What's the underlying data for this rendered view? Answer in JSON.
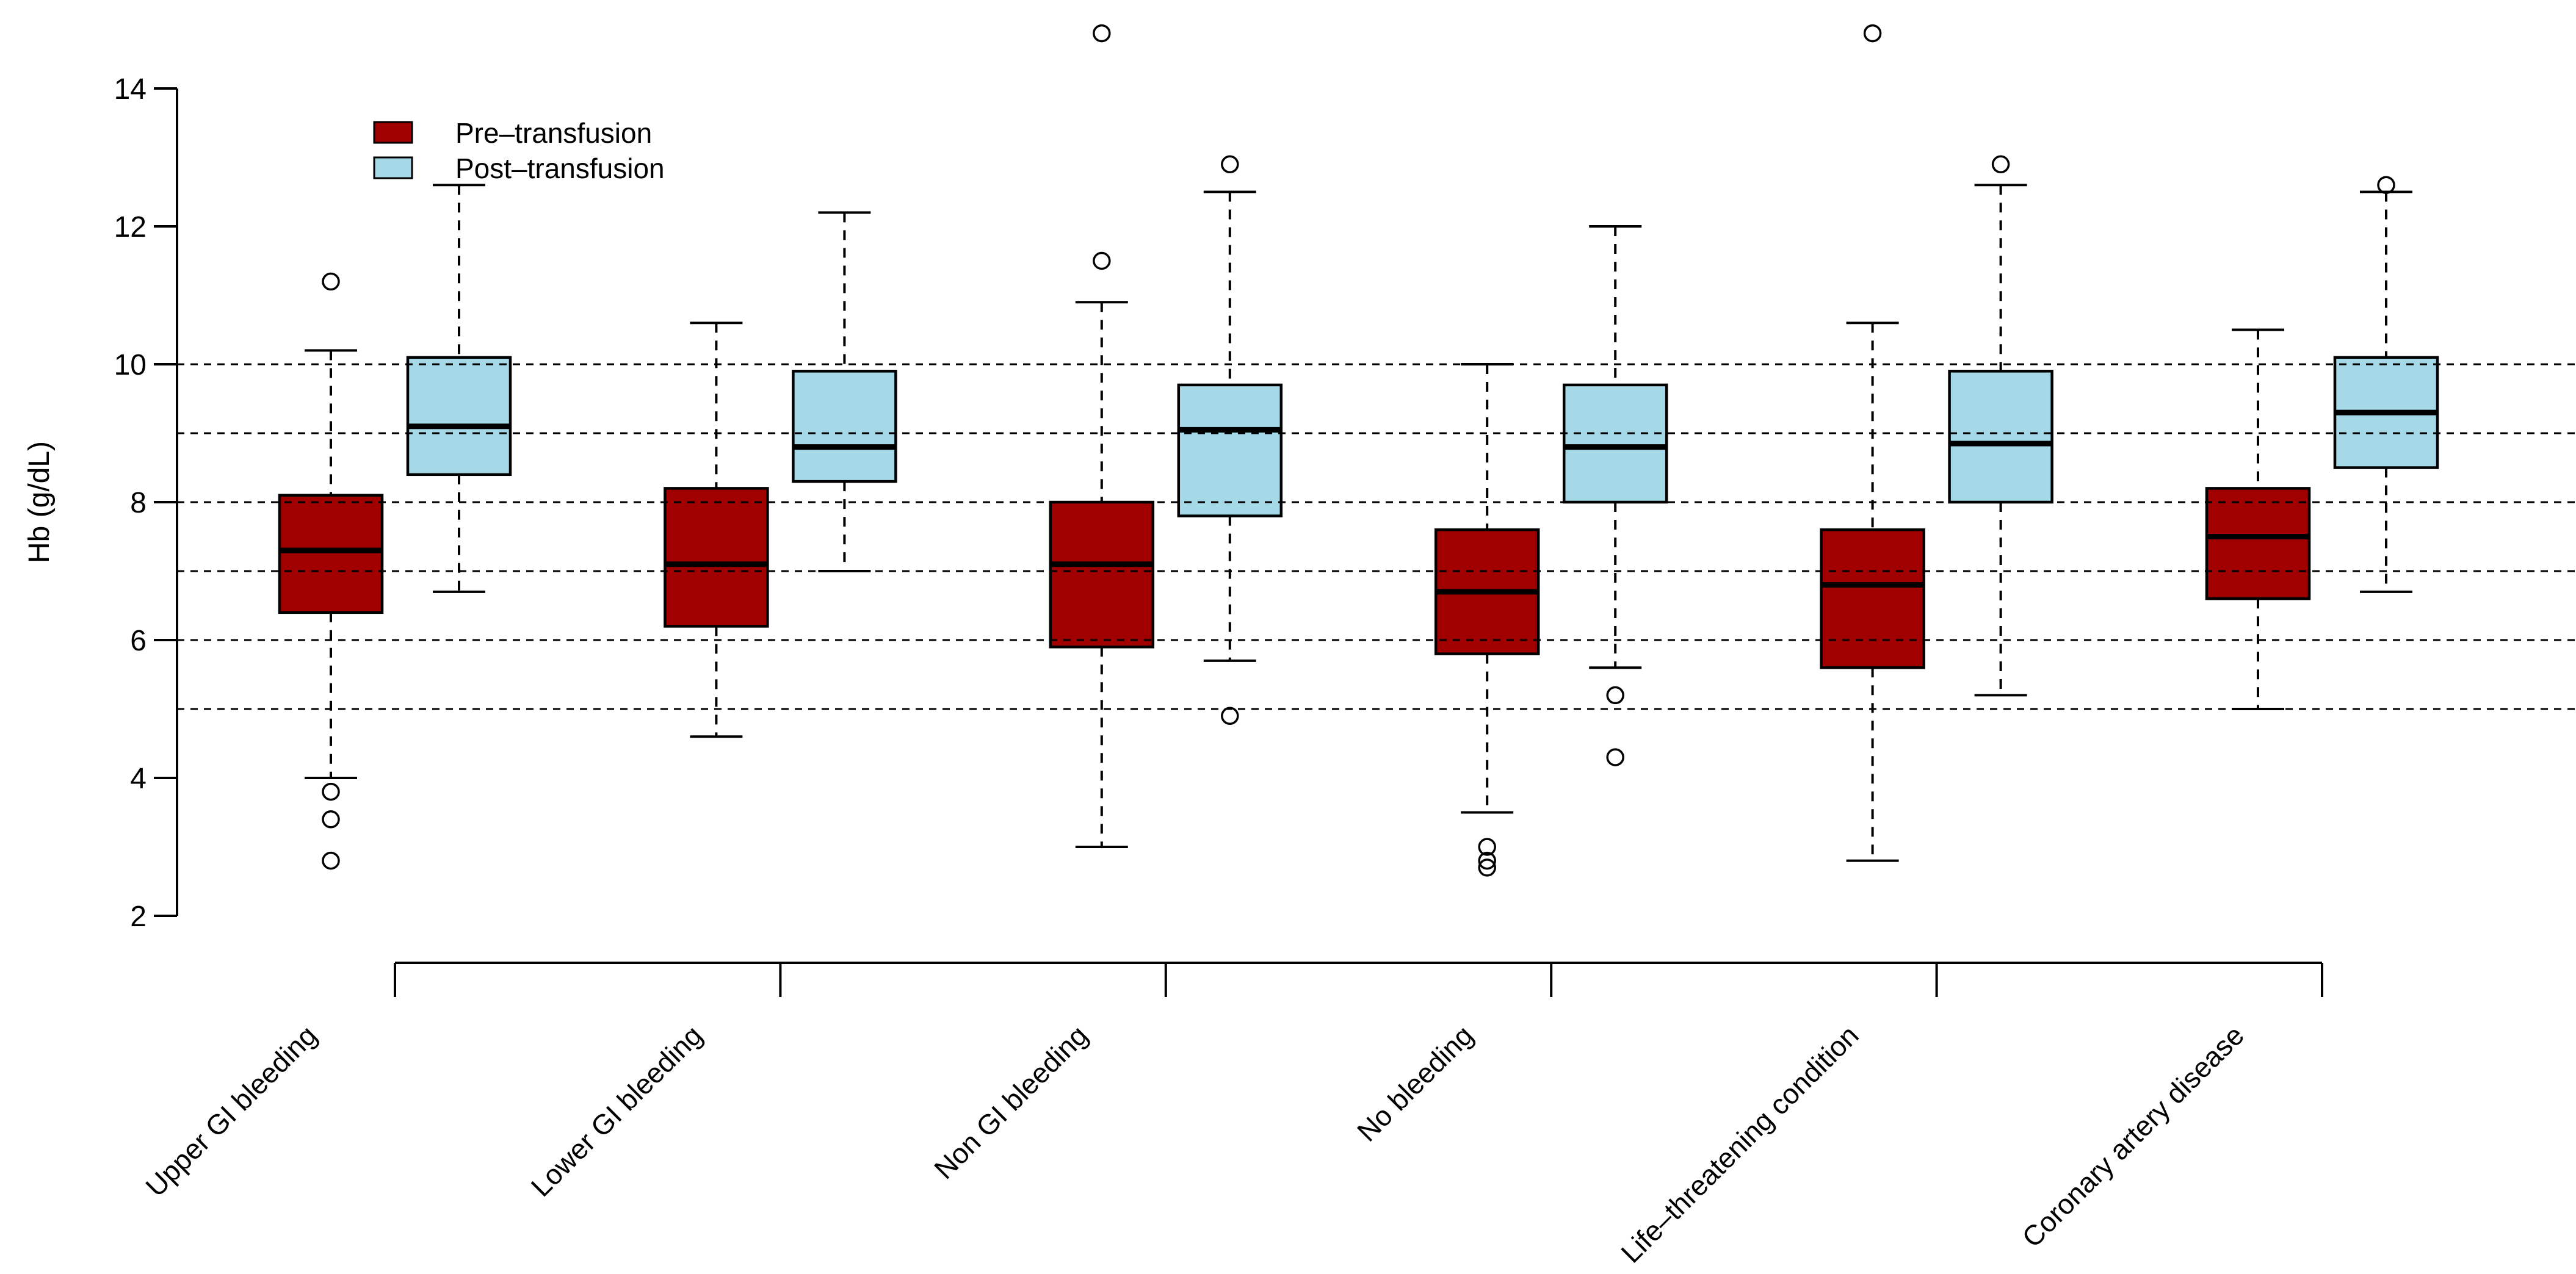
{
  "chart_data": {
    "type": "boxplot",
    "title": "",
    "xlabel": "",
    "ylabel": "Hb (g/dL)",
    "ylim": [
      2,
      14
    ],
    "yticks": [
      2,
      4,
      6,
      8,
      10,
      12,
      14
    ],
    "gridlines_y": [
      5,
      6,
      7,
      8,
      9,
      10
    ],
    "grid_style": "dotted-horizontal",
    "legend_position": "top-left-inside",
    "series": [
      {
        "name": "Pre–transfusion",
        "color": "#A00000"
      },
      {
        "name": "Post–transfusion",
        "color": "#A6D9E8"
      }
    ],
    "categories": [
      "Upper GI bleeding",
      "Lower GI bleeding",
      "Non GI bleeding",
      "No bleeding",
      "Life–threatening condition",
      "Coronary artery disease"
    ],
    "groups": [
      {
        "label": "Upper GI bleeding",
        "pre": {
          "whisker_low": 4.0,
          "q1": 6.4,
          "median": 7.3,
          "q3": 8.1,
          "whisker_high": 10.2,
          "outliers": [
            11.2,
            3.8,
            3.4,
            2.8
          ]
        },
        "post": {
          "whisker_low": 6.7,
          "q1": 8.4,
          "median": 9.1,
          "q3": 10.1,
          "whisker_high": 12.6,
          "outliers": []
        }
      },
      {
        "label": "Lower GI bleeding",
        "pre": {
          "whisker_low": 4.6,
          "q1": 6.2,
          "median": 7.1,
          "q3": 8.2,
          "whisker_high": 10.6,
          "outliers": []
        },
        "post": {
          "whisker_low": 7.0,
          "q1": 8.3,
          "median": 8.8,
          "q3": 9.9,
          "whisker_high": 12.2,
          "outliers": []
        }
      },
      {
        "label": "Non GI bleeding",
        "pre": {
          "whisker_low": 3.0,
          "q1": 5.9,
          "median": 7.1,
          "q3": 8.0,
          "whisker_high": 10.9,
          "outliers": [
            14.8,
            11.5
          ]
        },
        "post": {
          "whisker_low": 5.7,
          "q1": 7.8,
          "median": 9.05,
          "q3": 9.7,
          "whisker_high": 12.5,
          "outliers": [
            12.9,
            4.9
          ]
        }
      },
      {
        "label": "No bleeding",
        "pre": {
          "whisker_low": 3.5,
          "q1": 5.8,
          "median": 6.7,
          "q3": 7.6,
          "whisker_high": 10.0,
          "outliers": [
            3.0,
            2.8,
            2.7
          ]
        },
        "post": {
          "whisker_low": 5.6,
          "q1": 8.0,
          "median": 8.8,
          "q3": 9.7,
          "whisker_high": 12.0,
          "outliers": [
            5.2,
            4.3
          ]
        }
      },
      {
        "label": "Life–threatening condition",
        "pre": {
          "whisker_low": 2.8,
          "q1": 5.6,
          "median": 6.8,
          "q3": 7.6,
          "whisker_high": 10.6,
          "outliers": [
            14.8
          ]
        },
        "post": {
          "whisker_low": 5.2,
          "q1": 8.0,
          "median": 8.85,
          "q3": 9.9,
          "whisker_high": 12.6,
          "outliers": [
            12.9
          ]
        }
      },
      {
        "label": "Coronary artery disease",
        "pre": {
          "whisker_low": 5.0,
          "q1": 6.6,
          "median": 7.5,
          "q3": 8.2,
          "whisker_high": 10.5,
          "outliers": []
        },
        "post": {
          "whisker_low": 6.7,
          "q1": 8.5,
          "median": 9.3,
          "q3": 10.1,
          "whisker_high": 12.5,
          "outliers": [
            12.6
          ]
        }
      }
    ]
  }
}
